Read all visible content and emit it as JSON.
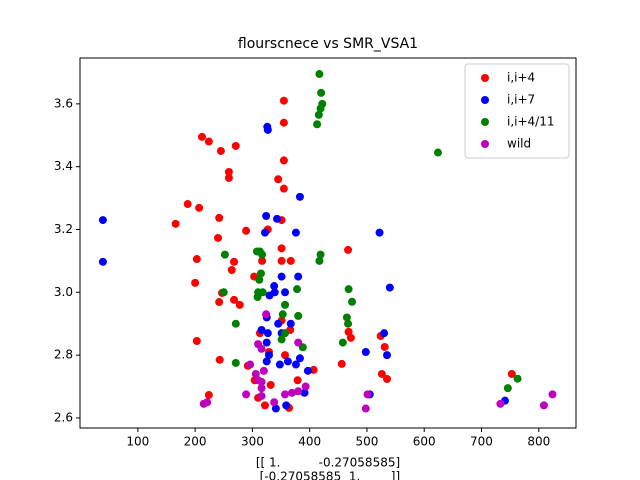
{
  "chart_data": {
    "type": "scatter",
    "title": "flourscnece vs SMR_VSA1",
    "xlabel": [
      "[[ 1.          -0.27058585]",
      " [-0.27058585  1.        ]]"
    ],
    "xlim": [
      -1,
      865
    ],
    "ylim": [
      2.568,
      3.746
    ],
    "xticks": [
      100,
      200,
      300,
      400,
      500,
      600,
      700,
      800
    ],
    "yticks": [
      2.6,
      2.8,
      {
        "value": 3,
        "label": "3.0"
      },
      3.2,
      3.4,
      3.6
    ],
    "legend": "upper right",
    "series": [
      {
        "name": "i,i+4",
        "color": "#ff0000",
        "x": [
          212,
          224,
          245,
          271,
          259,
          259,
          187,
          207,
          166,
          242,
          240,
          289,
          203,
          268,
          264,
          200,
          247,
          268,
          242,
          203,
          243,
          292,
          355,
          355,
          355,
          355,
          345,
          351,
          351,
          351,
          367,
          317,
          303,
          327,
          313,
          366,
          351,
          329,
          357,
          304,
          332,
          310,
          322,
          364,
          379,
          407,
          224,
          467,
          456,
          472,
          468,
          524,
          531,
          526,
          535,
          753,
          278
        ],
        "values": [
          3.495,
          3.48,
          3.45,
          3.466,
          3.383,
          3.364,
          3.281,
          3.269,
          3.218,
          3.237,
          3.173,
          3.196,
          3.106,
          3.097,
          3.071,
          3.03,
          2.998,
          2.976,
          2.969,
          2.845,
          2.785,
          2.766,
          3.61,
          3.54,
          3.42,
          3.33,
          3.36,
          3.23,
          3.14,
          3.1,
          3.1,
          3.1,
          3.05,
          3.2,
          2.87,
          2.88,
          2.91,
          2.81,
          2.8,
          2.72,
          2.705,
          2.664,
          2.64,
          2.632,
          2.72,
          2.753,
          2.673,
          3.135,
          2.772,
          2.855,
          2.874,
          2.861,
          2.826,
          2.74,
          2.724,
          2.74,
          2.96
        ]
      },
      {
        "name": "i,i+7",
        "color": "#0000ff",
        "x": [
          39,
          39,
          327,
          326,
          383,
          324,
          343,
          376,
          322,
          522,
          351,
          380,
          338,
          339,
          330,
          357,
          325,
          316,
          327,
          351,
          367,
          325,
          329,
          325,
          348,
          362,
          383,
          376,
          397,
          391,
          341,
          498,
          505,
          530,
          535,
          540,
          741,
          345,
          359
        ],
        "values": [
          3.23,
          3.097,
          3.517,
          3.527,
          3.304,
          3.243,
          3.234,
          3.19,
          3.19,
          3.19,
          3.05,
          3.05,
          3.02,
          3.0,
          2.99,
          3.0,
          2.92,
          2.88,
          2.87,
          2.87,
          2.9,
          2.84,
          2.8,
          2.78,
          2.77,
          2.78,
          2.79,
          2.77,
          2.75,
          2.68,
          2.63,
          2.81,
          2.675,
          2.87,
          2.8,
          3.015,
          2.655,
          2.9,
          2.64
        ]
      },
      {
        "name": "i,i+4/11",
        "color": "#008000",
        "x": [
          417,
          420,
          422,
          419,
          416,
          413,
          624,
          308,
          313,
          317,
          252,
          419,
          417,
          315,
          312,
          318,
          310,
          309,
          250,
          378,
          468,
          474,
          357,
          353,
          380,
          465,
          467,
          271,
          357,
          388,
          271,
          458,
          351,
          746,
          763
        ],
        "values": [
          3.695,
          3.635,
          3.6,
          3.585,
          3.565,
          3.535,
          3.445,
          3.13,
          3.13,
          3.12,
          3.12,
          3.12,
          3.1,
          3.06,
          3.04,
          3.0,
          3.0,
          2.985,
          3.0,
          3.01,
          3.01,
          2.97,
          2.96,
          2.93,
          2.925,
          2.92,
          2.9,
          2.9,
          2.87,
          2.825,
          2.775,
          2.84,
          2.85,
          2.695,
          2.725
        ]
      },
      {
        "name": "wild",
        "color": "#bf00bf",
        "x": [
          310,
          316,
          324,
          380,
          296,
          306,
          310,
          316,
          316,
          289,
          316,
          338,
          357,
          380,
          393,
          369,
          215,
          221,
          498,
          501,
          733,
          809,
          824,
          320
        ],
        "values": [
          2.835,
          2.82,
          2.93,
          2.84,
          2.77,
          2.74,
          2.72,
          2.715,
          2.695,
          2.675,
          2.67,
          2.65,
          2.675,
          2.685,
          2.7,
          2.68,
          2.645,
          2.65,
          2.63,
          2.675,
          2.645,
          2.64,
          2.675,
          2.75
        ]
      }
    ]
  }
}
